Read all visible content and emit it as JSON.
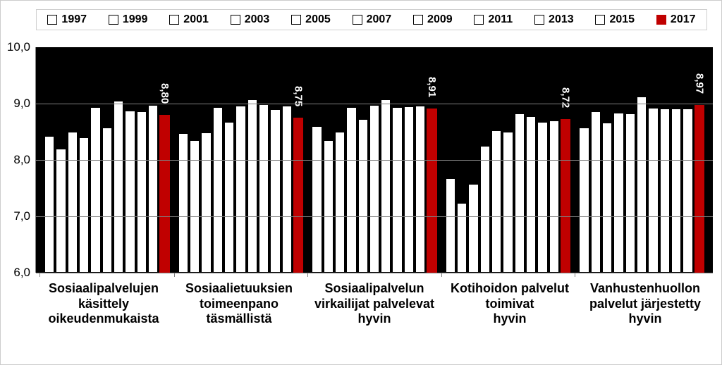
{
  "chart": {
    "type": "grouped-bar",
    "background_color": "#000000",
    "gridline_color": "#808080",
    "axis_color": "#808080",
    "bar_color": "#ffffff",
    "bar_highlight_color": "#c00000",
    "bar_border_color": "#000000",
    "ylim": [
      6.0,
      10.0
    ],
    "ytick_step": 1.0,
    "ytick_labels": [
      "6,0",
      "7,0",
      "8,0",
      "9,0",
      "10,0"
    ],
    "ylabel_fontsize": 17,
    "legend_years": [
      "1997",
      "1999",
      "2001",
      "2003",
      "2005",
      "2007",
      "2009",
      "2011",
      "2013",
      "2015",
      "2017"
    ],
    "legend_highlight_year": "2017",
    "legend_fontsize": 16,
    "catlabel_fontsize": 18,
    "value_label_fontsize": 15,
    "value_label_color": "#ffffff",
    "groups": [
      {
        "label_line1": "Sosiaalipalvelujen",
        "label_line2": "käsittely",
        "label_line3": "oikeudenmukaista",
        "highlight_value_label": "8,80",
        "values": [
          8.43,
          8.2,
          8.5,
          8.4,
          8.94,
          8.57,
          9.05,
          8.88,
          8.86,
          8.97,
          8.8
        ]
      },
      {
        "label_line1": "Sosiaalietuuksien",
        "label_line2": "toimeenpano",
        "label_line3": "täsmällistä",
        "highlight_value_label": "8,75",
        "values": [
          8.48,
          8.35,
          8.49,
          8.94,
          8.68,
          8.96,
          9.08,
          8.99,
          8.9,
          8.96,
          8.75
        ]
      },
      {
        "label_line1": "Sosiaalipalvelun",
        "label_line2": "virkailijat palvelevat",
        "label_line3": "hyvin",
        "highlight_value_label": "8,91",
        "values": [
          8.6,
          8.35,
          8.5,
          8.94,
          8.73,
          8.97,
          9.08,
          8.94,
          8.95,
          8.96,
          8.91
        ]
      },
      {
        "label_line1": "Kotihoidon palvelut",
        "label_line2": "toimivat",
        "label_line3": "hyvin",
        "highlight_value_label": "8,72",
        "values": [
          7.67,
          7.24,
          7.57,
          8.25,
          8.52,
          8.5,
          8.82,
          8.78,
          8.67,
          8.7,
          8.72
        ]
      },
      {
        "label_line1": "Vanhustenhuollon",
        "label_line2": "palvelut  järjestetty",
        "label_line3": "hyvin",
        "highlight_value_label": "8,97",
        "values": [
          8.57,
          8.86,
          8.66,
          8.84,
          8.82,
          9.13,
          8.93,
          8.91,
          8.91,
          8.91,
          8.97
        ]
      }
    ]
  }
}
